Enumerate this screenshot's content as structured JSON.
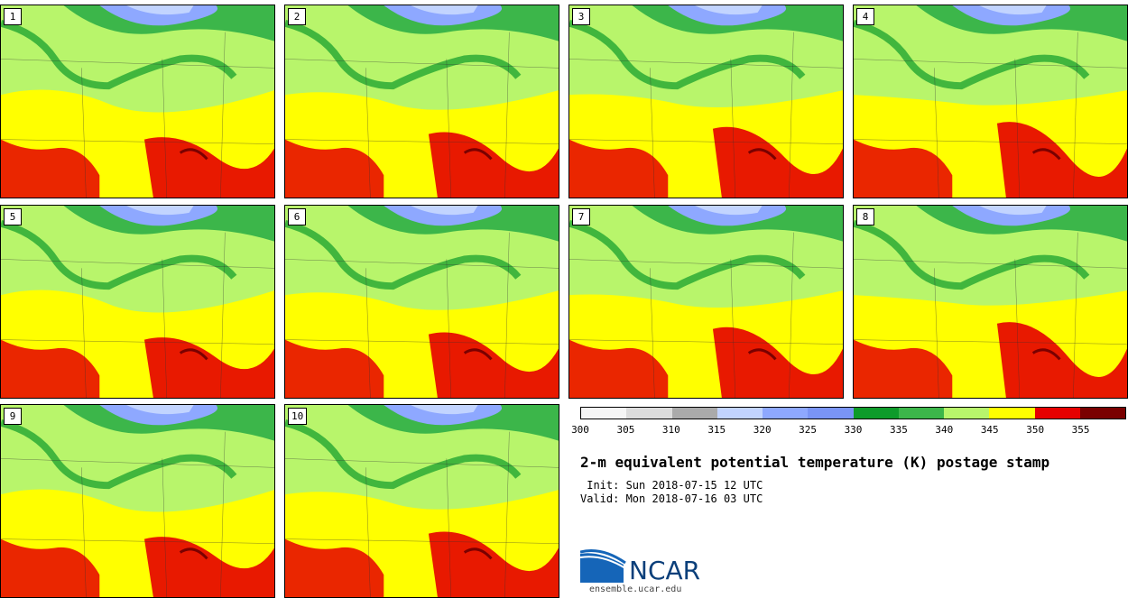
{
  "stamps": [
    "1",
    "2",
    "3",
    "4",
    "5",
    "6",
    "7",
    "8",
    "9",
    "10"
  ],
  "colorbar": {
    "ticks": [
      "300",
      "305",
      "310",
      "315",
      "320",
      "325",
      "330",
      "335",
      "340",
      "345",
      "350",
      "355"
    ],
    "colors": [
      "#f5f5f5",
      "#dcdcdc",
      "#aaaaaa",
      "#c2d4ff",
      "#8ea8ff",
      "#7a94f5",
      "#0e9b2a",
      "#3cb64a",
      "#b8f56b",
      "#ffff00",
      "#e60000",
      "#7a0000"
    ]
  },
  "title": "2-m equivalent potential temperature (K) postage stamp",
  "init": " Init: Sun 2018-07-15 12 UTC",
  "valid": "Valid: Mon 2018-07-16 03 UTC",
  "logo": {
    "name": "NCAR",
    "url": "ensemble.ucar.edu"
  }
}
